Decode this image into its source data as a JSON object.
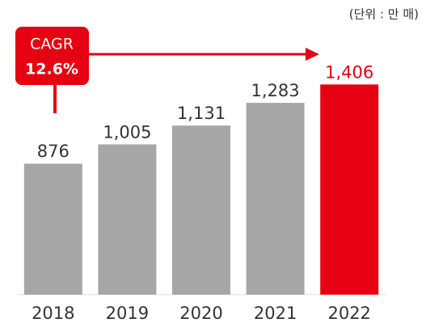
{
  "chart_data": {
    "type": "bar",
    "unit": "(단위 : 만 매)",
    "annotation": {
      "label": "CAGR",
      "value": "12.6%"
    },
    "categories": [
      "2018",
      "2019",
      "2020",
      "2021",
      "2022"
    ],
    "values": [
      876,
      1005,
      1131,
      1283,
      1406
    ],
    "value_labels": [
      "876",
      "1,005",
      "1,131",
      "1,283",
      "1,406"
    ],
    "colors": [
      "#a6a6a6",
      "#a6a6a6",
      "#a6a6a6",
      "#a6a6a6",
      "#e60012"
    ],
    "ylim": [
      0,
      1500
    ]
  }
}
